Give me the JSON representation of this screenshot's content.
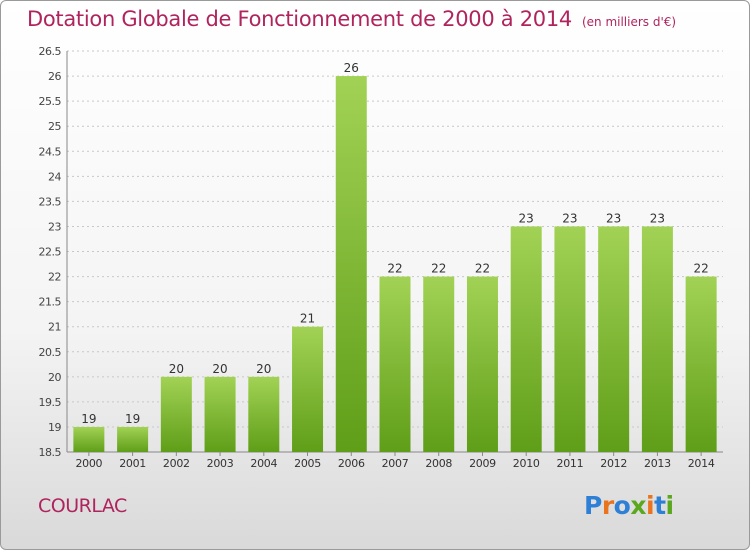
{
  "title": "Dotation Globale de Fonctionnement de 2000 à 2014",
  "subtitle": "(en milliers d'€)",
  "commune": "COURLAC",
  "logo": {
    "text": "Proxiti",
    "colors": [
      "#2e7fd6",
      "#e8741f",
      "#2e7fd6",
      "#5aa820",
      "#e8741f",
      "#2e7fd6",
      "#5aa820"
    ]
  },
  "colors": {
    "title": "#b0245e",
    "bar_top": "#a2d255",
    "bar_bottom": "#5f9e18",
    "grid": "#c8c8c8"
  },
  "chart_data": {
    "type": "bar",
    "categories": [
      "2000",
      "2001",
      "2002",
      "2003",
      "2004",
      "2005",
      "2006",
      "2007",
      "2008",
      "2009",
      "2010",
      "2011",
      "2012",
      "2013",
      "2014"
    ],
    "values": [
      19,
      19,
      20,
      20,
      20,
      21,
      26,
      22,
      22,
      22,
      23,
      23,
      23,
      23,
      22
    ],
    "labels": [
      "19",
      "19",
      "20",
      "20",
      "20",
      "21",
      "26",
      "22",
      "22",
      "22",
      "23",
      "23",
      "23",
      "23",
      "22"
    ],
    "ylim": [
      18.5,
      26.5
    ],
    "yticks": [
      "18.5",
      "19",
      "19.5",
      "20",
      "20.5",
      "21",
      "21.5",
      "22",
      "22.5",
      "23",
      "23.5",
      "24",
      "24.5",
      "25",
      "25.5",
      "26",
      "26.5"
    ],
    "grid": true,
    "title": "Dotation Globale de Fonctionnement de 2000 à 2014",
    "xlabel": "",
    "ylabel": ""
  }
}
